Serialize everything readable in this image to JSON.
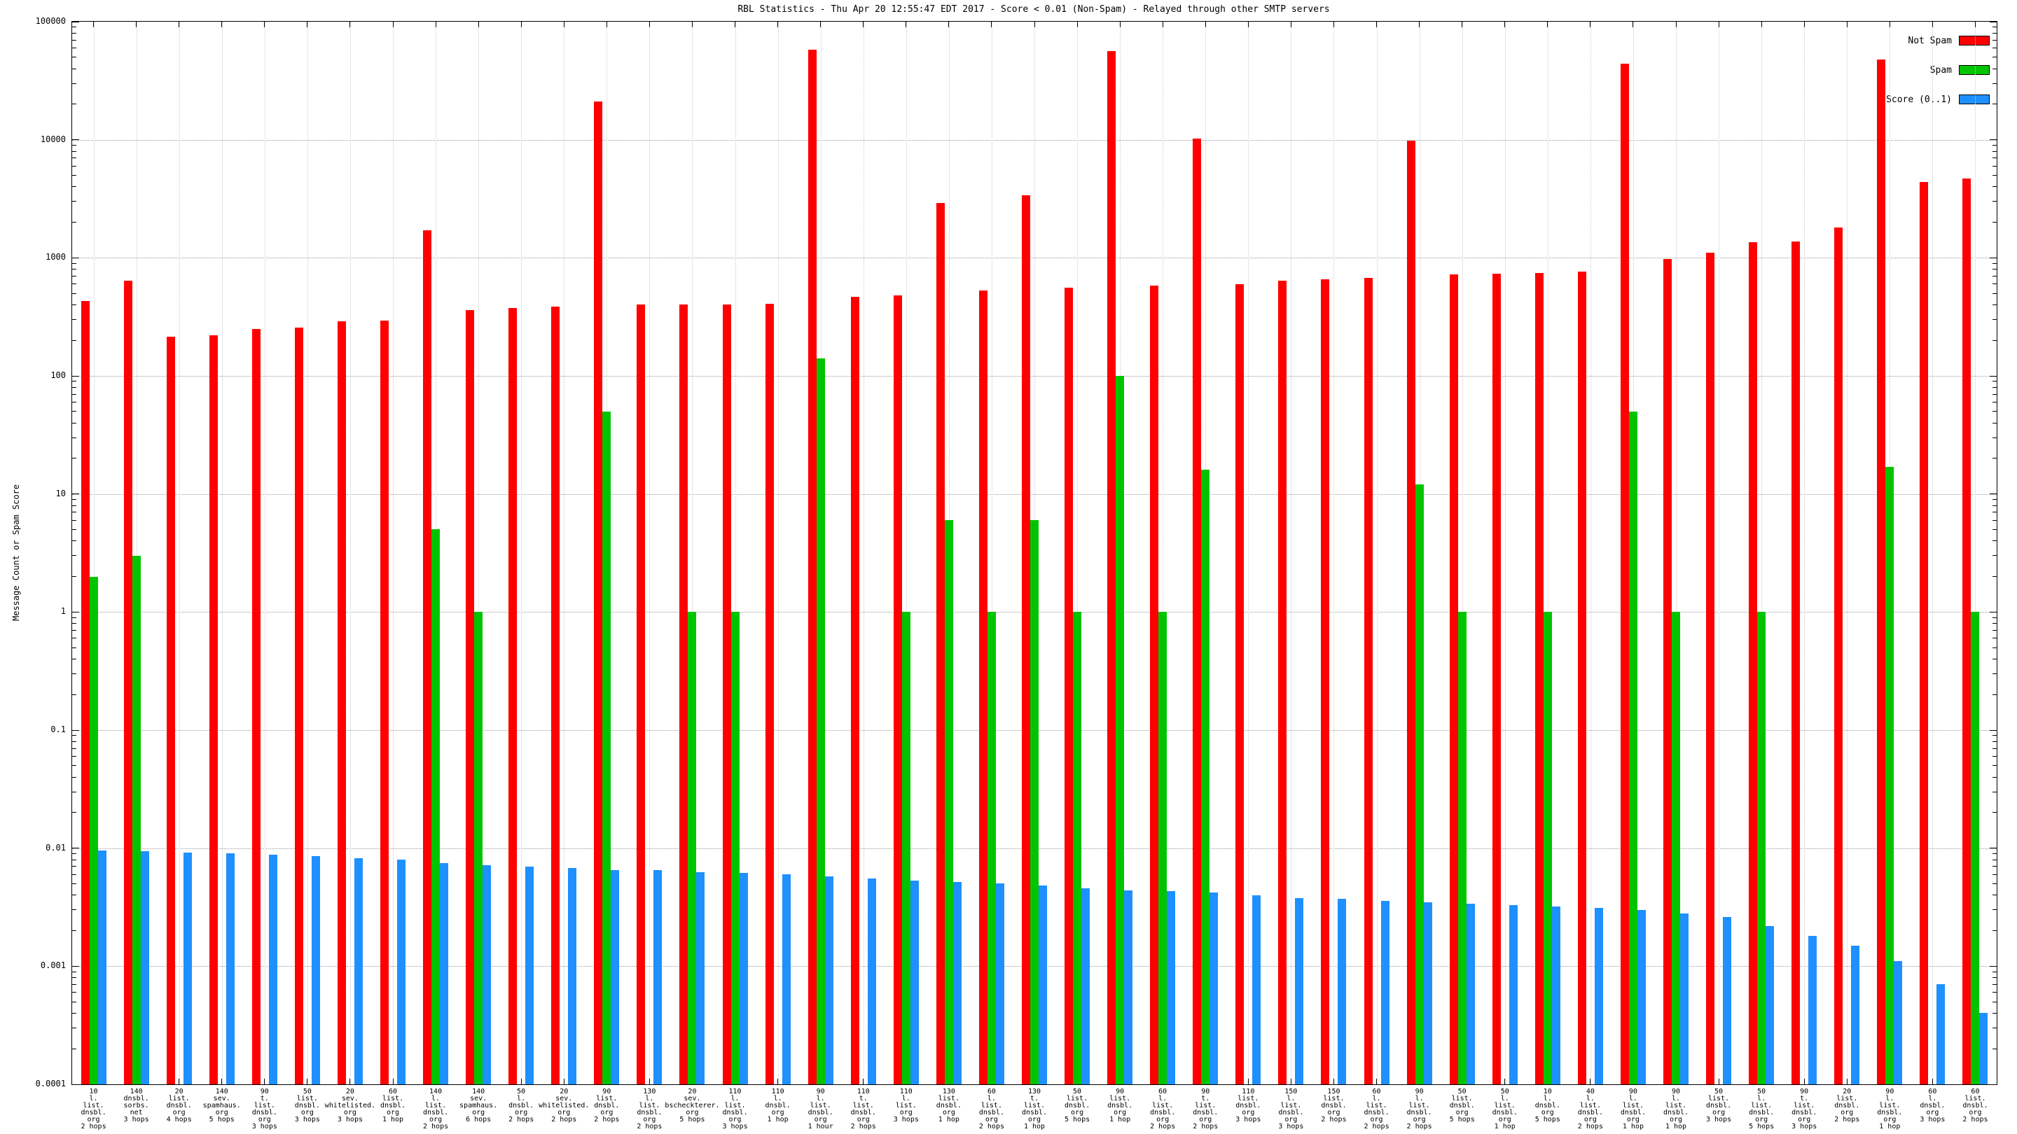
{
  "chart_data": {
    "type": "bar",
    "title": "RBL Statistics - Thu Apr 20 12:55:47 EDT 2017 - Score < 0.01 (Non-Spam) - Relayed through other SMTP servers",
    "xlabel": "",
    "ylabel": "Message Count or Spam Score",
    "yscale": "log",
    "ylim": [
      0.0001,
      100000
    ],
    "ytick_labels": [
      "100000",
      "10000",
      "1000",
      "100",
      "10",
      "1",
      "0.1",
      "0.01",
      "0.001",
      "0.0001"
    ],
    "grid": true,
    "legend_position": "inside-top-right",
    "categories": [
      [
        "10",
        "l.",
        "list.",
        "dnsbl.",
        "org",
        "2 hops"
      ],
      [
        "140",
        "dnsbl.",
        "sorbs.",
        "net",
        "3 hops"
      ],
      [
        "20",
        "list.",
        "dnsbl.",
        "org",
        "4 hops"
      ],
      [
        "140",
        "sev.",
        "spamhaus.",
        "org",
        "5 hops"
      ],
      [
        "90",
        "t.",
        "list.",
        "dnsbl.",
        "org",
        "3 hops"
      ],
      [
        "50",
        "list.",
        "dnsbl.",
        "org",
        "3 hops"
      ],
      [
        "20",
        "sev.",
        "whitelisted.",
        "org",
        "3 hops"
      ],
      [
        "60",
        "list.",
        "dnsbl.",
        "org",
        "1 hop"
      ],
      [
        "140",
        "l.",
        "list.",
        "dnsbl.",
        "org",
        "2 hops"
      ],
      [
        "140",
        "sev.",
        "spamhaus.",
        "org",
        "6 hops"
      ],
      [
        "50",
        "l.",
        "dnsbl.",
        "org",
        "2 hops"
      ],
      [
        "20",
        "sev.",
        "whitelisted.",
        "org",
        "2 hops"
      ],
      [
        "90",
        "list.",
        "dnsbl.",
        "org",
        "2 hops"
      ],
      [
        "130",
        "l.",
        "list.",
        "dnsbl.",
        "org",
        "2 hops"
      ],
      [
        "20",
        "sev.",
        "bscheckterer.",
        "org",
        "5 hops"
      ],
      [
        "110",
        "l.",
        "list.",
        "dnsbl.",
        "org",
        "3 hops"
      ],
      [
        "110",
        "l.",
        "dnsbl.",
        "org",
        "1 hop"
      ],
      [
        "90",
        "l.",
        "list.",
        "dnsbl.",
        "org",
        "1 hour"
      ],
      [
        "110",
        "t.",
        "list.",
        "dnsbl.",
        "org",
        "2 hops"
      ],
      [
        "110",
        "l.",
        "list.",
        "org",
        "3 hops"
      ],
      [
        "130",
        "list.",
        "dnsbl.",
        "org",
        "1 hop"
      ],
      [
        "60",
        "l.",
        "list.",
        "dnsbl.",
        "org",
        "2 hops"
      ],
      [
        "130",
        "t.",
        "list.",
        "dnsbl.",
        "org",
        "1 hop"
      ],
      [
        "50",
        "list.",
        "dnsbl.",
        "org",
        "5 hops"
      ],
      [
        "90",
        "list.",
        "dnsbl.",
        "org",
        "1 hop"
      ],
      [
        "60",
        "l.",
        "list.",
        "dnsbl.",
        "org",
        "2 hops"
      ],
      [
        "90",
        "t.",
        "list.",
        "dnsbl.",
        "org",
        "2 hops"
      ],
      [
        "110",
        "list.",
        "dnsbl.",
        "org",
        "3 hops"
      ],
      [
        "150",
        "l.",
        "list.",
        "dnsbl.",
        "org",
        "3 hops"
      ],
      [
        "150",
        "list.",
        "dnsbl.",
        "org",
        "2 hops"
      ],
      [
        "60",
        "l.",
        "list.",
        "dnsbl.",
        "org",
        "2 hops"
      ],
      [
        "90",
        "l.",
        "list.",
        "dnsbl.",
        "org",
        "2 hops"
      ],
      [
        "50",
        "list.",
        "dnsbl.",
        "org",
        "5 hops"
      ],
      [
        "50",
        "l.",
        "list.",
        "dnsbl.",
        "org",
        "1 hop"
      ],
      [
        "10",
        "l.",
        "dnsbl.",
        "org",
        "5 hops"
      ],
      [
        "40",
        "l.",
        "list.",
        "dnsbl.",
        "org",
        "2 hops"
      ],
      [
        "90",
        "l.",
        "list.",
        "dnsbl.",
        "org",
        "1 hop"
      ],
      [
        "90",
        "l.",
        "list.",
        "dnsbl.",
        "org",
        "1 hop"
      ],
      [
        "50",
        "list.",
        "dnsbl.",
        "org",
        "3 hops"
      ],
      [
        "50",
        "l.",
        "list.",
        "dnsbl.",
        "org",
        "5 hops"
      ],
      [
        "90",
        "t.",
        "list.",
        "dnsbl.",
        "org",
        "3 hops"
      ],
      [
        "20",
        "list.",
        "dnsbl.",
        "org",
        "2 hops"
      ],
      [
        "90",
        "l.",
        "list.",
        "dnsbl.",
        "org",
        "1 hop"
      ],
      [
        "60",
        "l.",
        "dnsbl.",
        "org",
        "3 hops"
      ],
      [
        "60",
        "list.",
        "dnsbl.",
        "org",
        "2 hops"
      ]
    ],
    "series": [
      {
        "name": "Not Spam",
        "color": "#ff0000",
        "values": [
          430,
          640,
          215,
          220,
          250,
          255,
          290,
          295,
          1700,
          360,
          375,
          385,
          21000,
          400,
          405,
          405,
          410,
          58000,
          470,
          480,
          2900,
          530,
          3400,
          560,
          56000,
          580,
          10200,
          600,
          640,
          660,
          680,
          9800,
          720,
          730,
          740,
          760,
          44000,
          980,
          1100,
          1350,
          1380,
          1800,
          48000,
          4400,
          4700
        ]
      },
      {
        "name": "Spam",
        "color": "#00c400",
        "values": [
          2,
          3,
          0,
          0,
          0,
          0,
          0,
          0,
          5,
          1,
          0,
          0,
          50,
          0,
          1,
          1,
          0,
          140,
          0,
          1,
          6,
          1,
          6,
          1,
          100,
          1,
          16,
          0,
          0,
          0,
          0,
          12,
          1,
          0,
          1,
          0,
          50,
          1,
          0,
          1,
          0,
          0,
          17,
          0,
          1
        ]
      },
      {
        "name": "Score (0..1)",
        "color": "#1e90ff",
        "values": [
          0.0095,
          0.0094,
          0.0092,
          0.009,
          0.0088,
          0.0086,
          0.0082,
          0.008,
          0.0075,
          0.0072,
          0.007,
          0.0068,
          0.0065,
          0.0065,
          0.0063,
          0.0062,
          0.006,
          0.0058,
          0.0055,
          0.0053,
          0.0052,
          0.005,
          0.0048,
          0.0046,
          0.0044,
          0.0043,
          0.0042,
          0.004,
          0.0038,
          0.0037,
          0.0036,
          0.0035,
          0.0034,
          0.0033,
          0.0032,
          0.0031,
          0.003,
          0.0028,
          0.0026,
          0.0022,
          0.0018,
          0.0015,
          0.0011,
          0.0007,
          0.0004
        ]
      }
    ]
  }
}
